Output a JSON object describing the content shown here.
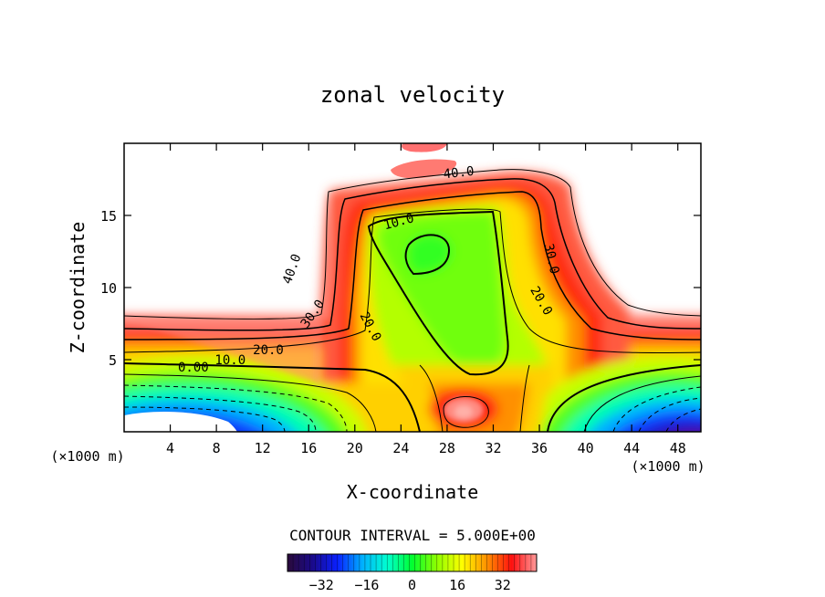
{
  "chart_data": {
    "type": "heatmap",
    "title": "zonal velocity",
    "xlabel": "X-coordinate",
    "ylabel": "Z-coordinate",
    "x_unit": "(×1000 m)",
    "xlim": [
      0,
      50
    ],
    "ylim": [
      0,
      20
    ],
    "xticks": [
      4,
      8,
      12,
      16,
      20,
      24,
      28,
      32,
      36,
      40,
      44,
      48
    ],
    "yticks": [
      5,
      10,
      15
    ],
    "contour_interval_text": "CONTOUR INTERVAL = 5.000E+00",
    "colorbar": {
      "min": -44,
      "max": 44,
      "ticks": [
        -32,
        -16,
        0,
        16,
        32
      ],
      "colors": [
        "#2a0a3a",
        "#1a0a8a",
        "#0a20ff",
        "#00b0ff",
        "#00ffd0",
        "#00ff30",
        "#90ff00",
        "#ffff00",
        "#ff9000",
        "#ff1010",
        "#ff9a9a"
      ]
    },
    "contour_labels": [
      {
        "x": 29.0,
        "z": 18.0,
        "text": "40.0",
        "rot": -6
      },
      {
        "x": 14.5,
        "z": 11.3,
        "text": "40.0",
        "rot": -70
      },
      {
        "x": 16.3,
        "z": 8.2,
        "text": "30.0",
        "rot": -55
      },
      {
        "x": 37.1,
        "z": 12.0,
        "text": "30.0",
        "rot": 78
      },
      {
        "x": 23.8,
        "z": 14.6,
        "text": "10.0",
        "rot": -15
      },
      {
        "x": 21.4,
        "z": 7.3,
        "text": "20.0",
        "rot": 62
      },
      {
        "x": 36.2,
        "z": 9.1,
        "text": "20.0",
        "rot": 60
      },
      {
        "x": 12.5,
        "z": 5.7,
        "text": "20.0",
        "rot": 0
      },
      {
        "x": 9.2,
        "z": 5.0,
        "text": "10.0",
        "rot": 0
      },
      {
        "x": 6.0,
        "z": 4.5,
        "text": "0.00",
        "rot": 0
      }
    ]
  }
}
